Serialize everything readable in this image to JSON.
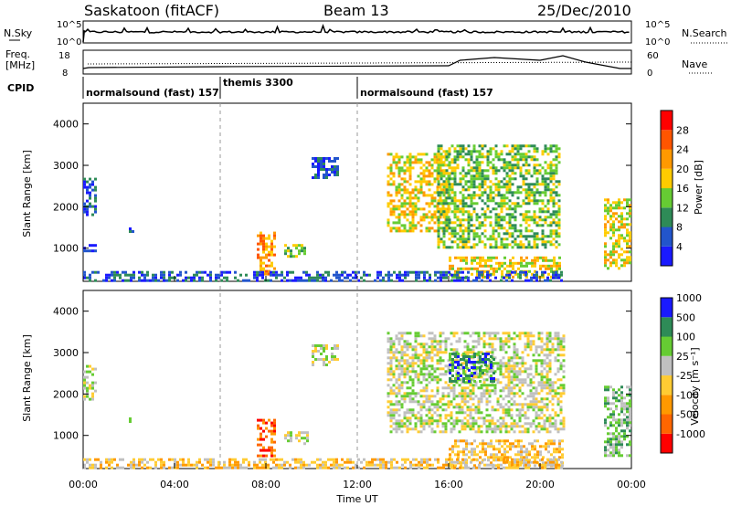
{
  "header": {
    "station": "Saskatoon (fitACF)",
    "beam": "Beam 13",
    "date": "25/Dec/2010"
  },
  "noise_panel": {
    "left_label": "N.Sky",
    "right_label": "N.Search",
    "y_top_tick": "10^5",
    "y_bottom_tick": "10^0",
    "right_top_tick": "10^5",
    "right_bottom_tick": "10^0"
  },
  "freq_panel": {
    "left_label_1": "Freq.",
    "left_label_2": "[MHz]",
    "left_top_tick": "18",
    "left_bottom_tick": "8",
    "right_label": "Nave",
    "right_top_tick": "60",
    "right_bottom_tick": "0"
  },
  "cpid": {
    "label": "CPID",
    "segments": [
      {
        "name": "normalsound (fast) 157",
        "start": "00:00",
        "end": "06:00"
      },
      {
        "name": "themis 3300",
        "start": "06:00",
        "end": "12:00"
      },
      {
        "name": "normalsound (fast) 157",
        "start": "12:00",
        "end": "24:00"
      }
    ]
  },
  "colors": {
    "power": [
      "#1a1aff",
      "#2255cc",
      "#2e8b57",
      "#66cc33",
      "#ffcc00",
      "#ff9900",
      "#ff5500",
      "#ff0000"
    ],
    "velocity": [
      "#ff0000",
      "#ff6600",
      "#ff9900",
      "#ffcc33",
      "#c0c0c0",
      "#66cc33",
      "#2e8b57",
      "#1a1aff"
    ]
  },
  "chart_data": [
    {
      "type": "heatmap",
      "panel": "power",
      "ylabel": "Slant Range [km]",
      "ylim": [
        200,
        4500
      ],
      "yticks": [
        "1000",
        "2000",
        "3000",
        "4000"
      ],
      "colorbar_label": "Power [dB]",
      "colorbar_ticks": [
        "4",
        "8",
        "12",
        "16",
        "20",
        "24",
        "28"
      ],
      "regions": [
        {
          "t": [
            0.0,
            0.5
          ],
          "r": [
            1800,
            2700
          ],
          "level": 1
        },
        {
          "t": [
            0.0,
            0.6
          ],
          "r": [
            950,
            1100
          ],
          "level": 0
        },
        {
          "t": [
            2.0,
            2.2
          ],
          "r": [
            1350,
            1500
          ],
          "level": 1
        },
        {
          "t": [
            7.6,
            8.4
          ],
          "r": [
            400,
            1400
          ],
          "level": 5
        },
        {
          "t": [
            8.8,
            9.8
          ],
          "r": [
            800,
            1100
          ],
          "level": 3
        },
        {
          "t": [
            10.0,
            11.2
          ],
          "r": [
            2700,
            3200
          ],
          "level": 1
        },
        {
          "t": [
            13.3,
            16.0
          ],
          "r": [
            1400,
            3300
          ],
          "level": 4
        },
        {
          "t": [
            15.5,
            20.8
          ],
          "r": [
            1000,
            3500
          ],
          "level": 3
        },
        {
          "t": [
            16.0,
            20.9
          ],
          "r": [
            300,
            800
          ],
          "level": 4
        },
        {
          "t": [
            22.8,
            24.0
          ],
          "r": [
            500,
            2200
          ],
          "level": 4
        },
        {
          "t": [
            0.0,
            21.0
          ],
          "r": [
            200,
            450
          ],
          "level": 1
        }
      ]
    },
    {
      "type": "heatmap",
      "panel": "velocity",
      "ylabel": "Slant Range [km]",
      "xlabel": "Time UT",
      "ylim": [
        200,
        4500
      ],
      "yticks": [
        "1000",
        "2000",
        "3000",
        "4000"
      ],
      "xticks": [
        "00:00",
        "04:00",
        "08:00",
        "12:00",
        "16:00",
        "20:00",
        "00:00"
      ],
      "colorbar_label": "Velocity [m s⁻¹]",
      "colorbar_ticks": [
        "-1000",
        "-500",
        "-100",
        "-25",
        "25",
        "100",
        "500",
        "1000"
      ],
      "regions": [
        {
          "t": [
            0.0,
            0.5
          ],
          "r": [
            1800,
            2700
          ],
          "level": 4
        },
        {
          "t": [
            2.0,
            2.2
          ],
          "r": [
            1350,
            1500
          ],
          "level": 6
        },
        {
          "t": [
            7.6,
            8.4
          ],
          "r": [
            500,
            1400
          ],
          "level": 1
        },
        {
          "t": [
            8.8,
            9.8
          ],
          "r": [
            800,
            1100
          ],
          "level": 4
        },
        {
          "t": [
            10.0,
            11.2
          ],
          "r": [
            2700,
            3200
          ],
          "level": 4
        },
        {
          "t": [
            13.3,
            21.0
          ],
          "r": [
            1100,
            3500
          ],
          "level": 4
        },
        {
          "t": [
            16.0,
            18.0
          ],
          "r": [
            2300,
            3000
          ],
          "level": 6
        },
        {
          "t": [
            16.0,
            21.0
          ],
          "r": [
            300,
            900
          ],
          "level": 3
        },
        {
          "t": [
            22.8,
            24.0
          ],
          "r": [
            500,
            2200
          ],
          "level": 5
        },
        {
          "t": [
            0.0,
            21.0
          ],
          "r": [
            200,
            450
          ],
          "level": 3
        }
      ]
    }
  ]
}
